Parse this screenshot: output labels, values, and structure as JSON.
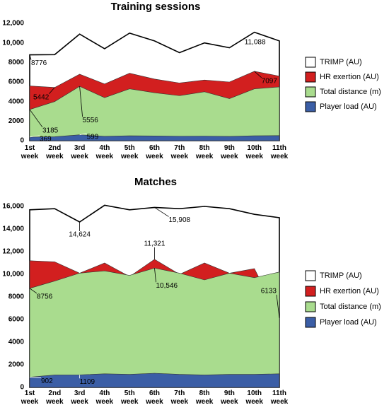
{
  "chart_data": [
    {
      "type": "area",
      "title": "Training sessions",
      "categories": [
        "1st week",
        "2nd week",
        "3rd week",
        "4th week",
        "5th week",
        "6th week",
        "7th week",
        "8th week",
        "9th week",
        "10th week",
        "11th week"
      ],
      "ylim": [
        0,
        12000
      ],
      "yticks": [
        0,
        2000,
        4000,
        6000,
        8000,
        {
          "value": 10000,
          "label": "10,000"
        },
        {
          "value": 12000,
          "label": "12,000"
        }
      ],
      "legend": "right",
      "series": [
        {
          "name": "TRIMP (AU)",
          "color": "#ffffff",
          "values": [
            8776,
            8800,
            10900,
            9400,
            11000,
            10200,
            9000,
            10000,
            9500,
            11088,
            10200
          ],
          "value_labels": [
            "8776",
            null,
            null,
            null,
            null,
            null,
            null,
            null,
            null,
            "11,088",
            null
          ]
        },
        {
          "name": "HR exertion (AU)",
          "color": "#d21f1f",
          "values": [
            5600,
            5442,
            6800,
            5800,
            6900,
            6300,
            5900,
            6200,
            6000,
            7097,
            6600
          ],
          "value_labels": [
            null,
            "5442",
            null,
            null,
            null,
            null,
            null,
            null,
            null,
            "7097",
            null
          ]
        },
        {
          "name": "Total distance (m)",
          "color": "#a9dc8e",
          "values": [
            3185,
            4000,
            5556,
            4400,
            5300,
            4900,
            4600,
            5000,
            4300,
            5300,
            5500
          ],
          "value_labels": [
            "3185",
            null,
            "5556",
            null,
            null,
            null,
            null,
            null,
            null,
            null,
            null
          ]
        },
        {
          "name": "Player load (AU)",
          "color": "#3b5ea6",
          "values": [
            369,
            400,
            599,
            450,
            500,
            480,
            460,
            470,
            440,
            500,
            520
          ],
          "value_labels": [
            "369",
            null,
            "599",
            null,
            null,
            null,
            null,
            null,
            null,
            null,
            null
          ]
        }
      ]
    },
    {
      "type": "area",
      "title": "Matches",
      "categories": [
        "1st week",
        "2nd week",
        "3rd week",
        "4th week",
        "5th week",
        "6th week",
        "7th week",
        "8th week",
        "9th week",
        "10th week",
        "11th week"
      ],
      "ylim": [
        0,
        16000
      ],
      "yticks": [
        0,
        2000,
        4000,
        6000,
        8000,
        {
          "value": 10000,
          "label": "10,000"
        },
        {
          "value": 12000,
          "label": "12,000"
        },
        {
          "value": 14000,
          "label": "14,000"
        },
        {
          "value": 16000,
          "label": "16,000"
        }
      ],
      "legend": "right",
      "series": [
        {
          "name": "TRIMP (AU)",
          "color": "#ffffff",
          "values": [
            15700,
            15800,
            14624,
            16100,
            15700,
            15908,
            15800,
            16000,
            15800,
            15300,
            15000
          ],
          "value_labels": [
            null,
            null,
            "14,624",
            null,
            null,
            "15,908",
            null,
            null,
            null,
            null,
            null
          ]
        },
        {
          "name": "HR exertion (AU)",
          "color": "#d21f1f",
          "values": [
            11200,
            11100,
            10100,
            11000,
            9800,
            11321,
            10000,
            11000,
            10100,
            10500,
            6133
          ],
          "value_labels": [
            null,
            null,
            null,
            null,
            null,
            "11,321",
            null,
            null,
            null,
            null,
            "6133"
          ]
        },
        {
          "name": "Total distance (m)",
          "color": "#a9dc8e",
          "values": [
            8756,
            9400,
            10100,
            10300,
            9900,
            10546,
            10100,
            9500,
            10100,
            9700,
            10200
          ],
          "value_labels": [
            "8756",
            null,
            null,
            null,
            null,
            "10,546",
            null,
            null,
            null,
            null,
            null
          ]
        },
        {
          "name": "Player load (AU)",
          "color": "#3b5ea6",
          "values": [
            902,
            1100,
            1109,
            1200,
            1150,
            1250,
            1150,
            1100,
            1150,
            1150,
            1200
          ],
          "value_labels": [
            "902",
            null,
            "1109",
            null,
            null,
            null,
            null,
            null,
            null,
            null,
            null
          ]
        }
      ]
    }
  ]
}
